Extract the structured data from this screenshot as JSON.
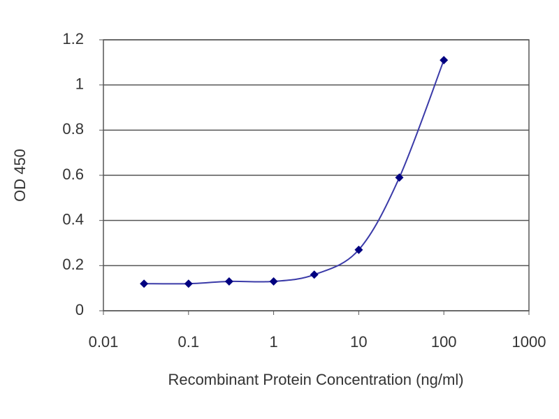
{
  "chart_data": {
    "type": "line",
    "xlabel": "Recombinant Protein Concentration (ng/ml)",
    "ylabel": "OD 450",
    "x": [
      0.03,
      0.1,
      0.3,
      1,
      3,
      10,
      30,
      100
    ],
    "series": [
      {
        "color": "#000080",
        "values": [
          0.12,
          0.12,
          0.13,
          0.13,
          0.16,
          0.27,
          0.59,
          1.11
        ]
      }
    ],
    "xscale": "log",
    "xlim": [
      0.01,
      1000
    ],
    "xticks": [
      0.01,
      0.1,
      1,
      10,
      100,
      1000
    ],
    "ylim": [
      0,
      1.2
    ],
    "yticks": [
      0,
      0.2,
      0.4,
      0.6,
      0.8,
      1,
      1.2
    ],
    "grid": true,
    "line_color": "#3a3aa8"
  }
}
